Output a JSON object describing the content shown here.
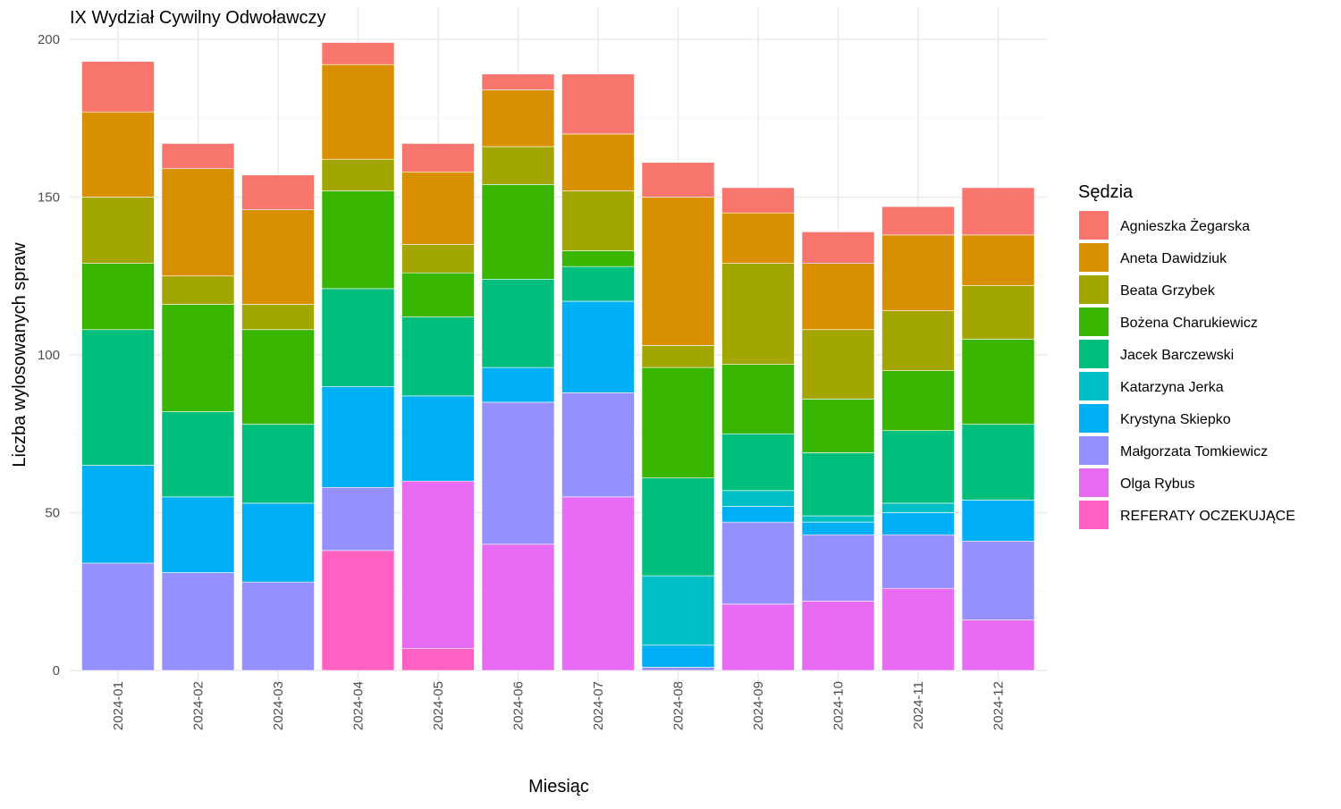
{
  "chart_data": {
    "type": "bar",
    "stacked": true,
    "title": "IX Wydział Cywilny Odwoławczy",
    "xlabel": "Miesiąc",
    "ylabel": "Liczba wylosowanych spraw",
    "ylim": [
      0,
      200
    ],
    "yticks": [
      0,
      50,
      100,
      150,
      200
    ],
    "grid": true,
    "legend": {
      "title": "Sędzia",
      "position": "right"
    },
    "categories": [
      "2024-01",
      "2024-02",
      "2024-03",
      "2024-04",
      "2024-05",
      "2024-06",
      "2024-07",
      "2024-08",
      "2024-09",
      "2024-10",
      "2024-11",
      "2024-12"
    ],
    "series": [
      {
        "name": "REFERATY OCZEKUJĄCE",
        "color": "#FF61C3",
        "values": [
          0,
          0,
          0,
          38,
          7,
          0,
          0,
          0,
          0,
          0,
          0,
          0
        ]
      },
      {
        "name": "Olga Rybus",
        "color": "#E76BF3",
        "values": [
          0,
          0,
          0,
          0,
          53,
          40,
          55,
          0,
          21,
          22,
          26,
          16
        ]
      },
      {
        "name": "Małgorzata Tomkiewicz",
        "color": "#9590FF",
        "values": [
          34,
          31,
          28,
          20,
          0,
          45,
          33,
          1,
          26,
          21,
          17,
          25
        ]
      },
      {
        "name": "Krystyna Skiepko",
        "color": "#00B0F6",
        "values": [
          31,
          24,
          25,
          32,
          27,
          11,
          29,
          7,
          5,
          4,
          7,
          13
        ]
      },
      {
        "name": "Katarzyna Jerka",
        "color": "#00BFC4",
        "values": [
          0,
          0,
          0,
          0,
          0,
          0,
          0,
          22,
          5,
          2,
          3,
          0
        ]
      },
      {
        "name": "Jacek Barczewski",
        "color": "#00BF7D",
        "values": [
          43,
          27,
          25,
          31,
          25,
          28,
          11,
          31,
          18,
          20,
          23,
          24
        ]
      },
      {
        "name": "Bożena Charukiewicz",
        "color": "#39B600",
        "values": [
          21,
          34,
          30,
          31,
          14,
          30,
          5,
          35,
          22,
          17,
          19,
          27
        ]
      },
      {
        "name": "Beata Grzybek",
        "color": "#A3A500",
        "values": [
          21,
          9,
          8,
          10,
          9,
          12,
          19,
          7,
          32,
          22,
          19,
          17
        ]
      },
      {
        "name": "Aneta Dawidziuk",
        "color": "#D89000",
        "values": [
          27,
          34,
          30,
          30,
          23,
          18,
          18,
          47,
          16,
          21,
          24,
          16
        ]
      },
      {
        "name": "Agnieszka Żegarska",
        "color": "#F8766D",
        "values": [
          16,
          8,
          11,
          7,
          9,
          5,
          19,
          11,
          8,
          10,
          9,
          15
        ]
      }
    ],
    "legend_order": [
      "Agnieszka Żegarska",
      "Aneta Dawidziuk",
      "Beata Grzybek",
      "Bożena Charukiewicz",
      "Jacek Barczewski",
      "Katarzyna Jerka",
      "Krystyna Skiepko",
      "Małgorzata Tomkiewicz",
      "Olga Rybus",
      "REFERATY OCZEKUJĄCE"
    ]
  }
}
